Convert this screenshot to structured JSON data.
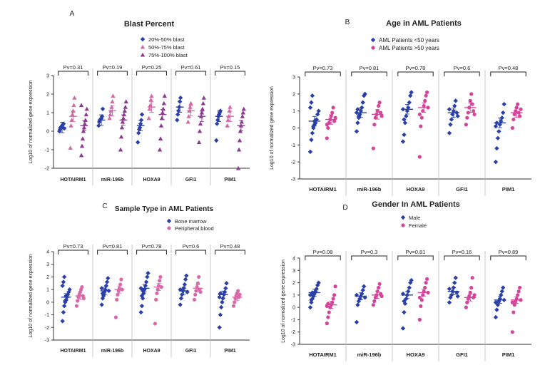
{
  "chart_data": [
    {
      "type": "scatter",
      "panel_letter": "A",
      "title": "Blast Percent",
      "xlabel": "",
      "ylabel": "Log10 of normalized gene expression",
      "ylim": [
        -2,
        3
      ],
      "yticks": [
        -2,
        -1,
        0,
        1,
        2,
        3
      ],
      "categories": [
        "HOTAIRM1",
        "miR-196b",
        "HOXA9",
        "GFI1",
        "PIM1"
      ],
      "pvalues": [
        "Pv=0.31",
        "Pv=0.19",
        "Pv=0.25",
        "Pv=0.61",
        "Pv=0.15"
      ],
      "legend": [
        "20%-50% blast",
        "50%-75% blast",
        "75%-100% blast"
      ],
      "series": [
        {
          "name": "20%-50% blast",
          "color": "#2b3fa8",
          "marker": "diamond",
          "values": [
            [
              0.0,
              0.1,
              0.2,
              0.25,
              0.3,
              0.35,
              0.4,
              0.15
            ],
            [
              0.3,
              0.5,
              0.6,
              0.65,
              0.7,
              0.8,
              1.2
            ],
            [
              -0.6,
              -0.1,
              0.1,
              0.2,
              0.4,
              0.6,
              0.9
            ],
            [
              0.6,
              0.9,
              1.1,
              1.3,
              1.6,
              1.8
            ],
            [
              -0.5,
              0.4,
              0.6,
              0.8,
              0.9,
              1.0,
              1.1
            ]
          ],
          "means": [
            0.2,
            0.6,
            0.3,
            1.3,
            0.8
          ]
        },
        {
          "name": "50%-75% blast",
          "color": "#d16aa6",
          "marker": "triangle",
          "values": [
            [
              -0.9,
              0.3,
              0.6,
              0.9,
              1.1,
              1.4,
              1.8
            ],
            [
              0.7,
              0.9,
              1.1,
              1.3,
              1.6,
              1.9
            ],
            [
              0.7,
              1.2,
              1.4,
              1.7,
              1.9
            ],
            [
              0.5,
              0.8,
              1.1,
              1.3,
              1.5
            ],
            [
              0.3,
              0.6,
              0.8,
              1.1,
              1.3
            ]
          ],
          "means": [
            0.8,
            1.1,
            1.3,
            1.1,
            0.8
          ]
        },
        {
          "name": "75%-100% blast",
          "color": "#8b3a8f",
          "marker": "triangle",
          "values": [
            [
              -1.3,
              -0.8,
              -0.4,
              0.0,
              0.2,
              0.4,
              0.6,
              0.9,
              1.2,
              1.4
            ],
            [
              -1.0,
              -0.3,
              0.2,
              0.5,
              0.7,
              0.9,
              1.1,
              1.3,
              1.6
            ],
            [
              -1.0,
              -0.4,
              0.3,
              0.7,
              1.0,
              1.2,
              1.5,
              1.9
            ],
            [
              -0.6,
              0.0,
              0.4,
              0.8,
              1.0,
              1.2,
              1.5,
              1.8
            ],
            [
              -2.0,
              -1.0,
              -0.5,
              0.0,
              0.3,
              0.5,
              0.8,
              1.0,
              1.2
            ]
          ],
          "means": [
            0.3,
            0.6,
            0.9,
            0.8,
            0.3
          ]
        }
      ]
    },
    {
      "type": "scatter",
      "panel_letter": "B",
      "title": "Age in AML Patients",
      "xlabel": "",
      "ylabel": "Log10 of normalized gene expression",
      "ylim": [
        -3,
        3
      ],
      "yticks": [
        -3,
        -2,
        -1,
        0,
        1,
        2,
        3
      ],
      "categories": [
        "HOTAIRM1",
        "miR-196b",
        "HOXA9",
        "GFI1",
        "PIM1"
      ],
      "pvalues": [
        "Pv=0.73",
        "Pv=0.81",
        "Pv=0.78",
        "Pv=0.6",
        "Pv=0.48"
      ],
      "legend": [
        "AML Patients <50 years",
        "AML Patients >50 years"
      ],
      "series": [
        {
          "name": "AML Patients <50 years",
          "color": "#2b3fa8",
          "marker": "diamond",
          "values": [
            [
              -1.4,
              -0.7,
              -0.3,
              0.0,
              0.2,
              0.3,
              0.5,
              0.8,
              1.0,
              1.2,
              1.5,
              1.9,
              0.1,
              0.4
            ],
            [
              -0.2,
              0.3,
              0.6,
              0.8,
              1.0,
              1.2,
              1.5,
              1.9,
              2.0,
              0.9,
              1.1,
              0.7
            ],
            [
              -0.8,
              -0.4,
              0.3,
              0.7,
              1.0,
              1.2,
              1.5,
              1.9,
              2.1,
              1.1,
              0.5
            ],
            [
              -0.3,
              0.2,
              0.5,
              0.8,
              1.0,
              1.3,
              1.6,
              0.9,
              0.7,
              1.1
            ],
            [
              -2.0,
              -1.2,
              -0.6,
              -0.2,
              0.2,
              0.4,
              0.6,
              0.9,
              1.4,
              0.1,
              0.3
            ]
          ],
          "means": [
            0.4,
            0.9,
            1.1,
            0.9,
            0.3
          ]
        },
        {
          "name": "AML Patients >50 years",
          "color": "#d3449a",
          "marker": "circle",
          "values": [
            [
              -0.6,
              0.0,
              0.3,
              0.5,
              0.7,
              0.9,
              1.2,
              0.4,
              0.6,
              0.2
            ],
            [
              -1.2,
              0.2,
              0.6,
              0.8,
              1.0,
              1.3,
              1.5,
              0.9,
              0.7
            ],
            [
              -1.7,
              0.1,
              0.6,
              1.0,
              1.3,
              1.6,
              1.9,
              2.1,
              1.2,
              0.8
            ],
            [
              0.2,
              0.6,
              0.9,
              1.2,
              1.6,
              2.0,
              1.4,
              1.0,
              0.8
            ],
            [
              0.0,
              0.5,
              0.8,
              1.0,
              1.2,
              1.4,
              0.9,
              0.7,
              1.1
            ]
          ],
          "means": [
            0.5,
            0.8,
            1.2,
            1.2,
            0.9
          ]
        }
      ]
    },
    {
      "type": "scatter",
      "panel_letter": "C",
      "title": "Sample Type in AML Patients",
      "xlabel": "",
      "ylabel": "Log10 of normalized gene expression",
      "ylim": [
        -3,
        4
      ],
      "yticks": [
        -3,
        -2,
        -1,
        0,
        1,
        2,
        3,
        4
      ],
      "categories": [
        "HOTAIRM1",
        "miR-196b",
        "HOXA9",
        "GFI1",
        "PIM1"
      ],
      "pvalues": [
        "Pv=0.73",
        "Pv=0.81",
        "Pv=0.78",
        "Pv=0.6",
        "Pv=0.48"
      ],
      "legend": [
        "Bone marrow",
        "Peripheral blood"
      ],
      "series": [
        {
          "name": "Bone marrow",
          "color": "#2b3fa8",
          "marker": "diamond",
          "values": [
            [
              -1.5,
              -0.8,
              -0.3,
              0.0,
              0.2,
              0.4,
              0.6,
              0.8,
              1.0,
              1.3,
              1.6,
              2.0,
              0.1,
              0.5
            ],
            [
              -0.2,
              0.3,
              0.6,
              0.8,
              1.0,
              1.3,
              1.6,
              1.9,
              0.9,
              1.1,
              0.7,
              0.5
            ],
            [
              -0.8,
              -0.3,
              0.3,
              0.7,
              1.0,
              1.3,
              1.6,
              2.0,
              2.3,
              1.1,
              0.5,
              0.9
            ],
            [
              -0.2,
              0.3,
              0.6,
              0.9,
              1.1,
              1.4,
              1.8,
              2.1,
              0.8,
              1.0
            ],
            [
              -2.0,
              -1.0,
              -0.4,
              0.0,
              0.3,
              0.6,
              0.8,
              1.1,
              1.5,
              0.4,
              0.7
            ]
          ],
          "means": [
            0.4,
            0.9,
            1.1,
            0.9,
            0.6
          ]
        },
        {
          "name": "Peripheral blood",
          "color": "#d96aa9",
          "marker": "circle",
          "values": [
            [
              -0.3,
              0.1,
              0.4,
              0.6,
              0.8,
              1.0,
              1.2,
              0.5,
              0.3
            ],
            [
              -1.2,
              0.2,
              0.6,
              0.9,
              1.1,
              1.4,
              1.8,
              1.0
            ],
            [
              -1.7,
              0.2,
              0.7,
              1.0,
              1.3,
              1.7,
              2.0,
              1.2
            ],
            [
              0.2,
              0.6,
              0.9,
              1.2,
              1.5,
              2.0,
              1.0,
              0.8
            ],
            [
              -0.3,
              0.0,
              0.3,
              0.5,
              0.7,
              0.9,
              0.4,
              0.6
            ]
          ],
          "means": [
            0.5,
            1.0,
            1.2,
            1.1,
            0.4
          ]
        }
      ]
    },
    {
      "type": "scatter",
      "panel_letter": "D",
      "title": "Gender In AML Patients",
      "xlabel": "",
      "ylabel": "Log10 of normalized gene expression",
      "ylim": [
        -3,
        4
      ],
      "yticks": [
        -3,
        -2,
        -1,
        0,
        1,
        2,
        3,
        4
      ],
      "categories": [
        "HOTAIRM1",
        "miR-196b",
        "HOXA9",
        "GFI1",
        "PIM1"
      ],
      "pvalues": [
        "Pv=0.08",
        "Pv=0.3",
        "Pv=0.81",
        "Pv=0.16",
        "Pv=0.89"
      ],
      "legend": [
        "Male",
        "Female"
      ],
      "series": [
        {
          "name": "Male",
          "color": "#2b3fa8",
          "marker": "diamond",
          "values": [
            [
              0.0,
              0.4,
              0.7,
              0.9,
              1.1,
              1.3,
              1.5,
              1.8,
              2.0,
              1.0,
              0.6,
              1.2
            ],
            [
              -1.2,
              0.2,
              0.5,
              0.7,
              0.9,
              1.1,
              1.4,
              1.7,
              0.8,
              1.0
            ],
            [
              -1.7,
              -0.4,
              0.3,
              0.7,
              1.0,
              1.3,
              1.6,
              2.0,
              2.2,
              1.1,
              0.5
            ],
            [
              0.4,
              0.8,
              1.0,
              1.3,
              1.6,
              2.0,
              2.4,
              1.2,
              0.9,
              1.5
            ],
            [
              -0.8,
              -0.2,
              0.2,
              0.5,
              0.7,
              1.0,
              1.3,
              1.6,
              0.6,
              0.4
            ]
          ],
          "means": [
            1.2,
            0.9,
            1.0,
            1.3,
            0.6
          ]
        },
        {
          "name": "Female",
          "color": "#d3449a",
          "marker": "circle",
          "values": [
            [
              -1.3,
              -0.8,
              -0.4,
              0.0,
              0.2,
              0.4,
              0.7,
              1.0,
              1.7,
              0.1,
              0.3
            ],
            [
              0.2,
              0.5,
              0.8,
              1.0,
              1.3,
              1.6,
              1.9,
              1.1,
              0.9
            ],
            [
              -1.0,
              0.1,
              0.6,
              1.0,
              1.3,
              1.6,
              2.0,
              2.3,
              1.2,
              0.8
            ],
            [
              0.0,
              0.4,
              0.7,
              0.9,
              1.2,
              1.6,
              2.4,
              0.8,
              1.0
            ],
            [
              -2.0,
              -0.4,
              0.2,
              0.5,
              0.7,
              1.0,
              1.3,
              1.6,
              0.6,
              0.4
            ]
          ],
          "means": [
            0.2,
            1.0,
            1.2,
            0.8,
            0.6
          ]
        }
      ]
    }
  ]
}
